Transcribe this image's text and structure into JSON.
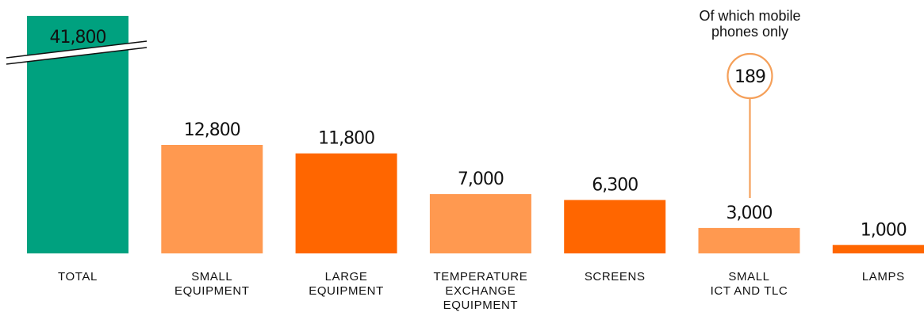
{
  "chart_data": {
    "type": "bar",
    "categories": [
      [
        "TOTAL"
      ],
      [
        "SMALL",
        "EQUIPMENT"
      ],
      [
        "LARGE",
        "EQUIPMENT"
      ],
      [
        "TEMPERATURE",
        "EXCHANGE",
        "EQUIPMENT"
      ],
      [
        "SCREENS"
      ],
      [
        "SMALL",
        "ICT AND TLC"
      ],
      [
        "LAMPS"
      ]
    ],
    "values": [
      41800,
      12800,
      11800,
      7000,
      6300,
      3000,
      1000
    ],
    "value_labels": [
      "41,800",
      "12,800",
      "11,800",
      "7,000",
      "6,300",
      "3,000",
      "1,000"
    ],
    "colors": [
      "#00A17F",
      "#FF9950",
      "#FF6600",
      "#FF9950",
      "#FF6600",
      "#FF9950",
      "#FF6600"
    ],
    "axis_break": {
      "category_index": 0
    },
    "grid": false,
    "annotation": {
      "category_index": 5,
      "text": [
        "Of which mobile",
        "phones only"
      ],
      "value": 189,
      "value_label": "189",
      "color": "#F5A05A"
    }
  }
}
